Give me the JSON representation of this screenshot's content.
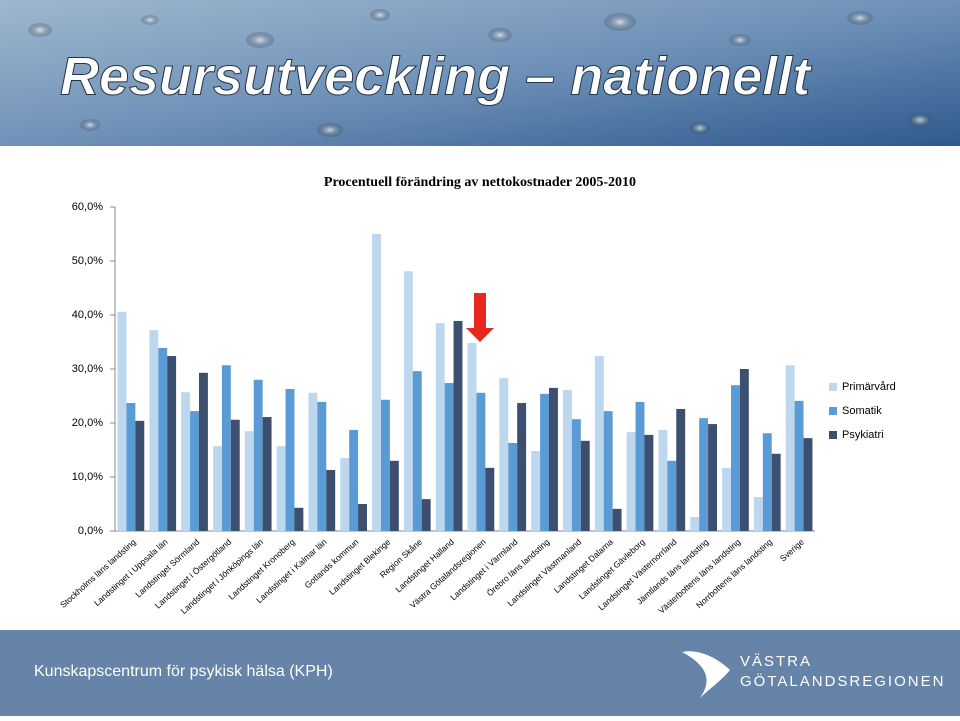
{
  "header": {
    "title": "Resursutveckling – nationellt"
  },
  "footer": {
    "text": "Kunskapscentrum för psykisk hälsa (KPH)",
    "logo": [
      "VÄSTRA",
      "GÖTALANDSREGIONEN"
    ]
  },
  "chart_data": {
    "type": "bar",
    "title": "Procentuell förändring av nettokostnader 2005-2010",
    "categories": [
      "Stockholms läns landsting",
      "Landstinget i Uppsala län",
      "Landstinget Sörmland",
      "Landstinget i Östergötland",
      "Landstinget i Jönköpings län",
      "Landstinget Kronoberg",
      "Landstinget i Kalmar län",
      "Gotlands kommun",
      "Landstinget Blekinge",
      "Region Skåne",
      "Landstinget Halland",
      "Västra Götalandsregionen",
      "Landstinget i Värmland",
      "Örebro läns landsting",
      "Landstinget Västmanland",
      "Landstinget Dalarna",
      "Landstinget Gävleborg",
      "Landstinget Västernorrland",
      "Jämtlands läns landsting",
      "Västerbottens läns landsting",
      "Norrbottens läns landsting",
      "Sverige"
    ],
    "series": [
      {
        "name": "Primärvård",
        "color": "#bdd7ee",
        "values": [
          40.6,
          37.2,
          25.7,
          15.7,
          18.5,
          15.7,
          25.6,
          13.5,
          55.0,
          48.1,
          38.5,
          34.8,
          28.3,
          14.8,
          26.1,
          32.4,
          18.3,
          18.7,
          2.6,
          11.7,
          6.3,
          30.7
        ]
      },
      {
        "name": "Somatik",
        "color": "#5b9bd5",
        "values": [
          23.7,
          33.9,
          22.2,
          30.7,
          28.0,
          26.3,
          23.9,
          18.7,
          24.3,
          29.6,
          27.4,
          25.6,
          16.3,
          25.4,
          20.7,
          22.2,
          23.9,
          13.0,
          20.9,
          27.0,
          18.1,
          24.1
        ]
      },
      {
        "name": "Psykiatri",
        "color": "#3c4f6e",
        "values": [
          20.4,
          32.4,
          29.3,
          20.6,
          21.1,
          4.3,
          11.3,
          5.0,
          13.0,
          5.9,
          38.9,
          11.7,
          23.7,
          26.5,
          16.7,
          4.1,
          17.8,
          22.6,
          19.8,
          30.0,
          14.3,
          17.2
        ]
      }
    ],
    "ylim": [
      0,
      60
    ],
    "yticks": [
      {
        "value": 0,
        "label": "0,0%"
      },
      {
        "value": 10,
        "label": "10,0%"
      },
      {
        "value": 20,
        "label": "20,0%"
      },
      {
        "value": 30,
        "label": "30,0%"
      },
      {
        "value": 40,
        "label": "40,0%"
      },
      {
        "value": 50,
        "label": "50,0%"
      },
      {
        "value": 60,
        "label": "60,0%"
      }
    ],
    "grid": false,
    "legend": "right"
  }
}
